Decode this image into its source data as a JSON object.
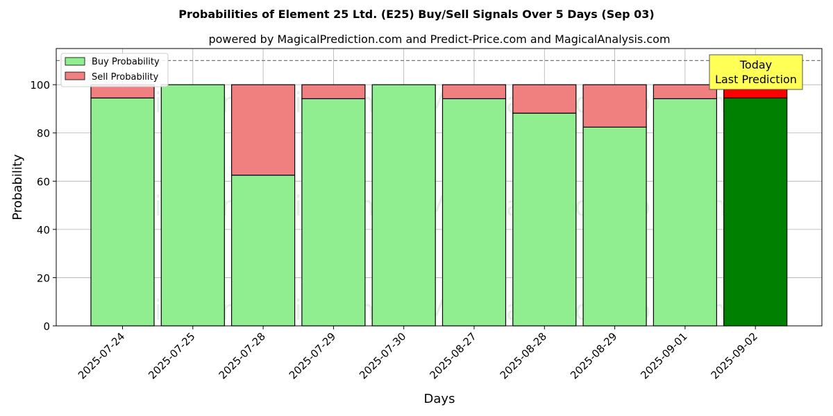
{
  "chart_data": {
    "type": "bar",
    "stacked": true,
    "title": "Probabilities of Element 25 Ltd. (E25) Buy/Sell Signals Over 5 Days (Sep 03)",
    "subtitle": "powered by MagicalPrediction.com and Predict-Price.com and MagicalAnalysis.com",
    "xlabel": "Days",
    "ylabel": "Probability",
    "ylim": [
      0,
      115
    ],
    "yticks": [
      0,
      20,
      40,
      60,
      80,
      100
    ],
    "threshold_line": 110,
    "grid": true,
    "legend_position": "top-left",
    "categories": [
      "2025-07-24",
      "2025-07-25",
      "2025-07-28",
      "2025-07-29",
      "2025-07-30",
      "2025-08-27",
      "2025-08-28",
      "2025-08-29",
      "2025-09-01",
      "2025-09-02"
    ],
    "series": [
      {
        "name": "Buy Probability",
        "color": "#90ee90",
        "highlight_color": "#008000",
        "values": [
          94.5,
          100,
          62.5,
          94.2,
          100,
          94.2,
          88.2,
          82.4,
          94.2,
          94.5
        ]
      },
      {
        "name": "Sell Probability",
        "color": "#f08080",
        "highlight_color": "#ff0000",
        "values": [
          5.5,
          0,
          37.5,
          5.8,
          0,
          5.8,
          11.8,
          17.6,
          5.8,
          5.5
        ]
      }
    ],
    "highlight_index": 9,
    "annotation": {
      "lines": [
        "Today",
        "Last Prediction"
      ],
      "color": "#ffff55"
    },
    "watermarks": [
      "MagicalAnalysis.com",
      "MagicalPrediction.com"
    ]
  }
}
